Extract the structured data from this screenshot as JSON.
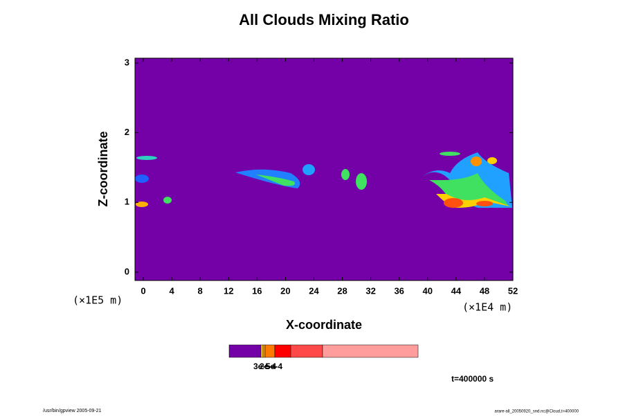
{
  "chart_data": {
    "type": "contour",
    "title": "All Clouds Mixing Ratio",
    "x_label": "X-coordinate",
    "y_label": "Z-coordinate",
    "x_unit": "(×1E4 m)",
    "y_unit": "(×1E5 m)",
    "xlim": [
      -1.17,
      52
    ],
    "ylim": [
      -0.12,
      3.07
    ],
    "xticks": [
      0,
      4,
      8,
      12,
      16,
      20,
      24,
      28,
      32,
      36,
      40,
      44,
      48,
      52
    ],
    "yticks": [
      0,
      1,
      2,
      3
    ],
    "background_color": "#7400a8",
    "colorbar": {
      "colors": [
        "#7400a8",
        "#ffd000",
        "#ff9900",
        "#ff7a00",
        "#ff0000",
        "#ff4848",
        "#ff9c9c"
      ],
      "labels": [
        "3e-5",
        "2e-4",
        "5e-4"
      ]
    },
    "time_label": "t=400000 s",
    "footer_left": "/usr/bin/gpview 2005-09-21",
    "footer_right": "arare-all_20050920_snd.nc@Cloud,t=400000"
  }
}
